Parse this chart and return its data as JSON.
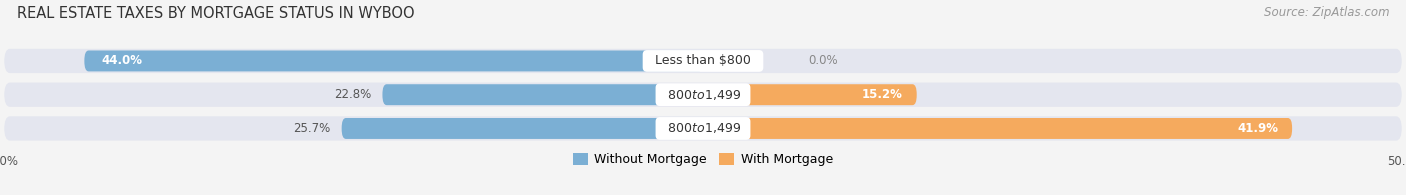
{
  "title": "REAL ESTATE TAXES BY MORTGAGE STATUS IN WYBOO",
  "source": "Source: ZipAtlas.com",
  "rows": [
    {
      "label": "Less than $800",
      "without_pct": 44.0,
      "with_pct": 0.0
    },
    {
      "label": "$800 to $1,499",
      "without_pct": 22.8,
      "with_pct": 15.2
    },
    {
      "label": "$800 to $1,499",
      "without_pct": 25.7,
      "with_pct": 41.9
    }
  ],
  "xlim_left": -50,
  "xlim_right": 50,
  "legend_labels": [
    "Without Mortgage",
    "With Mortgage"
  ],
  "bar_color_without": "#7bafd4",
  "bar_color_with": "#f5aa5e",
  "bar_bg_color": "#e4e6ef",
  "bar_height": 0.62,
  "title_fontsize": 10.5,
  "source_fontsize": 8.5,
  "label_fontsize": 9,
  "pct_fontsize": 8.5,
  "axis_label_fontsize": 8.5,
  "bg_facecolor": "#f4f4f4"
}
